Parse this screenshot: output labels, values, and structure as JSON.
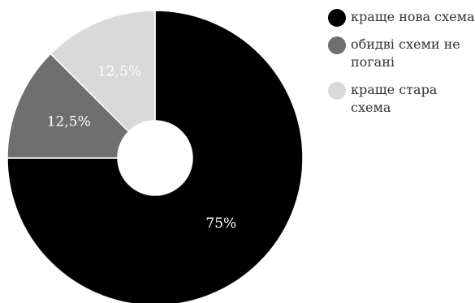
{
  "chart_data": {
    "type": "pie",
    "variant": "donut",
    "categories": [
      "краще нова схема",
      "обидві схеми не погані",
      "краще стара схема"
    ],
    "values": [
      75,
      12.5,
      12.5
    ],
    "data_labels": [
      "75%",
      "12,5%",
      "12,5%"
    ],
    "colors": [
      "#000000",
      "#6f6f6f",
      "#d9d9d9"
    ],
    "label_colors": [
      "#ffffff",
      "#ffffff",
      "#ffffff"
    ],
    "legend": "right",
    "title": ""
  }
}
